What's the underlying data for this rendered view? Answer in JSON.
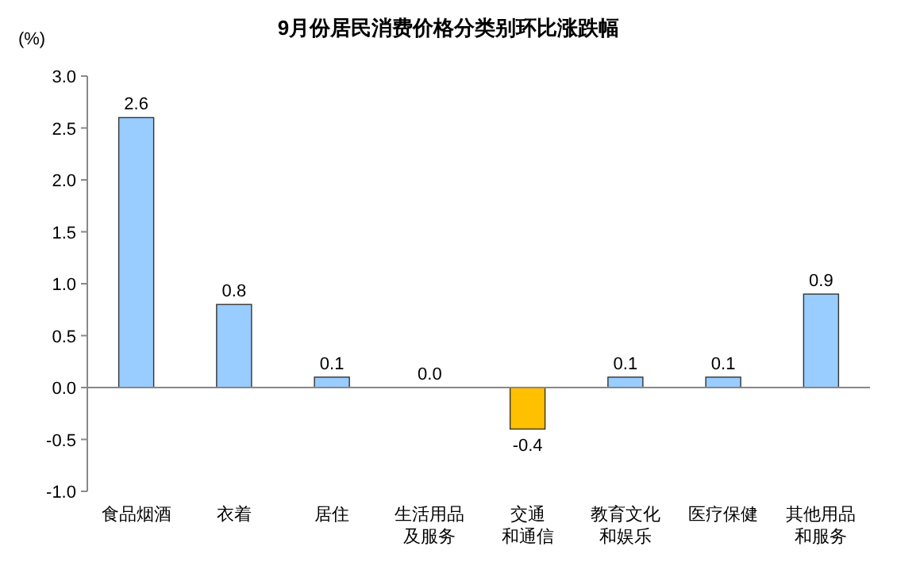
{
  "chart_data": {
    "type": "bar",
    "title": "9月份居民消费价格分类别环比涨跌幅",
    "ylabel": "(%)",
    "categories": [
      "食品烟酒",
      "衣着",
      "居住",
      "生活用品及服务",
      "交通和通信",
      "教育文化和娱乐",
      "医疗保健",
      "其他用品和服务"
    ],
    "values": [
      2.6,
      0.8,
      0.1,
      0.0,
      -0.4,
      0.1,
      0.1,
      0.9
    ],
    "colors": [
      "#99ccff",
      "#99ccff",
      "#99ccff",
      "#99ccff",
      "#ffc000",
      "#99ccff",
      "#99ccff",
      "#99ccff"
    ],
    "value_labels": [
      "2.6",
      "0.8",
      "0.1",
      "0.0",
      "-0.4",
      "0.1",
      "0.1",
      "0.9"
    ],
    "ylim": [
      -1.0,
      3.0
    ],
    "yticks": [
      {
        "value": -1.0,
        "label": "-1.0"
      },
      {
        "value": -0.5,
        "label": "-0.5"
      },
      {
        "value": 0,
        "label": "0.0"
      },
      {
        "value": 0.5,
        "label": "0.5"
      },
      {
        "value": 1.0,
        "label": "1.0"
      },
      {
        "value": 1.5,
        "label": "1.5"
      },
      {
        "value": 2.0,
        "label": "2.0"
      },
      {
        "value": 2.5,
        "label": "2.5"
      },
      {
        "value": 3.0,
        "label": "3.0"
      }
    ]
  }
}
